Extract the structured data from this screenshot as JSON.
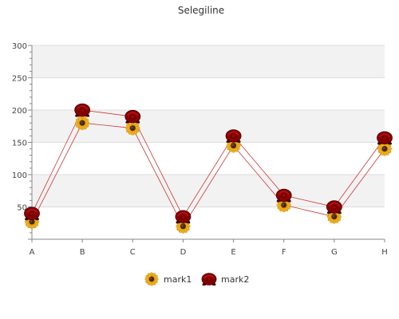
{
  "chart_data": {
    "type": "line",
    "title": "Selegiline",
    "xlabel": "",
    "ylabel": "",
    "categories": [
      "A",
      "B",
      "C",
      "D",
      "E",
      "F",
      "G",
      "H"
    ],
    "ylim": [
      0,
      300
    ],
    "yticks": [
      50,
      100,
      150,
      200,
      250,
      300
    ],
    "grid": "horizontal bands",
    "legend_position": "bottom",
    "series": [
      {
        "name": "mark1",
        "values": [
          27,
          180,
          172,
          20,
          145,
          53,
          35,
          140
        ],
        "marker": "sunflower-icon",
        "line_color": "#cc3333",
        "marker_color": "#f0b020"
      },
      {
        "name": "mark2",
        "values": [
          40,
          200,
          190,
          35,
          160,
          68,
          50,
          157
        ],
        "marker": "rose-icon",
        "line_color": "#cc3333",
        "marker_color": "#8b0000"
      }
    ]
  }
}
